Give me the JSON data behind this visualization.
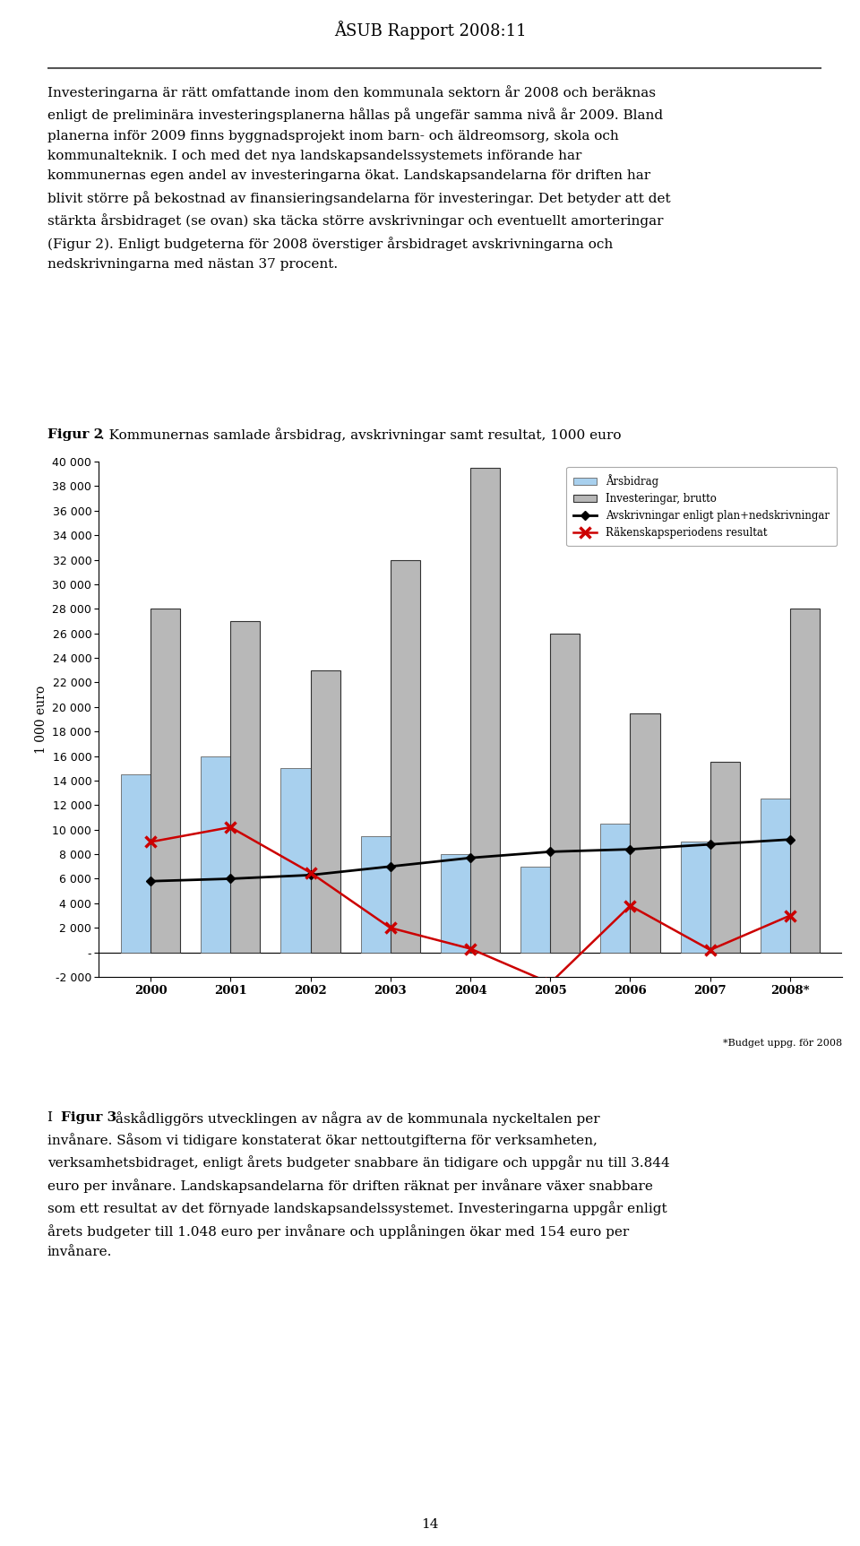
{
  "years": [
    "2000",
    "2001",
    "2002",
    "2003",
    "2004",
    "2005",
    "2006",
    "2007",
    "2008*"
  ],
  "arsbidrag": [
    14500,
    16000,
    15000,
    9500,
    8000,
    7000,
    10500,
    9000,
    12500
  ],
  "investeringar": [
    28000,
    27000,
    23000,
    32000,
    39500,
    26000,
    19500,
    15500,
    28000
  ],
  "avskrivningar": [
    5800,
    6000,
    6300,
    7000,
    7700,
    8200,
    8400,
    8800,
    9200
  ],
  "resultat": [
    9000,
    10200,
    6500,
    2000,
    300,
    -2500,
    3800,
    200,
    3000
  ],
  "arsbidrag_color": "#a8d0ee",
  "investeringar_color": "#b8b8b8",
  "avskrivningar_color": "#000000",
  "resultat_color": "#cc0000",
  "ylabel": "1 000 euro",
  "ylim_min": -2000,
  "ylim_max": 40000,
  "yticks": [
    -2000,
    0,
    2000,
    4000,
    6000,
    8000,
    10000,
    12000,
    14000,
    16000,
    18000,
    20000,
    22000,
    24000,
    26000,
    28000,
    30000,
    32000,
    34000,
    36000,
    38000,
    40000
  ],
  "legend_labels": [
    "Årsbidrag",
    "Investeringar, brutto",
    "Avskrivningar enligt plan+nedskrivningar",
    "Räkenskapsperiodens resultat"
  ],
  "figcaption_bold": "Figur 2",
  "figcaption_rest": ". Kommunernas samlade årsbidrag, avskrivningar samt resultat, 1000 euro",
  "xlabel_note": "*Budget uppg. för 2008",
  "page_header": "ÅSUB Rapport 2008:11",
  "page_number": "14",
  "body1": [
    "Investeringarna är rätt omfattande inom den kommunala sektorn år 2008 och beräknas",
    "enligt de preliminära investeringsplanerna hållas på ungefär samma nivå år 2009. Bland",
    "planerna inför 2009 finns byggnadsprojekt inom barn- och äldreomsorg, skola och",
    "kommunalteknik. I och med det nya landskapsandelssystemets införande har",
    "kommunernas egen andel av investeringarna ökat. Landskapsandelarna för driften har",
    "blivit större på bekostnad av finansieringsandelarna för investeringar. Det betyder att det",
    "stärkta årsbidraget (se ovan) ska täcka större avskrivningar och eventuellt amorteringar",
    "(Figur 2). Enligt budgeterna för 2008 överstiger årsbidraget avskrivningarna och",
    "nedskrivningarna med nästan 37 procent."
  ],
  "body2_prefix_normal": "I ",
  "body2_prefix_bold": "Figur 3",
  "body2_rest": [
    " åskådliggörs utvecklingen av några av de kommunala nyckeltalen per",
    "invånare. Såsom vi tidigare konstaterat ökar nettoutgifterna för verksamheten,",
    "verksamhetsbidraget, enligt årets budgeter snabbare än tidigare och uppgår nu till 3.844",
    "euro per invånare. Landskapsandelarna för driften räknat per invånare växer snabbare",
    "som ett resultat av det förnyade landskapsandelssystemet. Investeringarna uppgår enligt",
    "årets budgeter till 1.048 euro per invånare och upplåningen ökar med 154 euro per",
    "invånare."
  ]
}
